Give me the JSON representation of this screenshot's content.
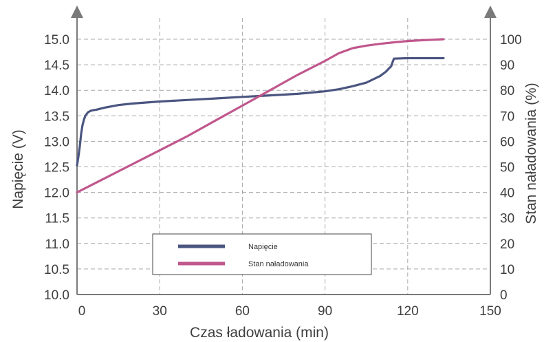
{
  "chart_data": {
    "type": "line",
    "xlabel": "Czas ładowania (min)",
    "ylabel_left": "Napięcie (V)",
    "ylabel_right": "Stan naładowania (%)",
    "xlim": [
      0,
      150
    ],
    "ylim_left": [
      10.0,
      15.0
    ],
    "ylim_right": [
      0,
      100
    ],
    "x_ticks": [
      "0",
      "30",
      "60",
      "90",
      "120",
      "150"
    ],
    "y_left_ticks": [
      "10.0",
      "10.5",
      "11.0",
      "11.5",
      "12.0",
      "12.5",
      "13.0",
      "13.5",
      "14.0",
      "14.5",
      "15.0"
    ],
    "y_right_ticks": [
      "0",
      "10",
      "20",
      "30",
      "40",
      "50",
      "60",
      "70",
      "80",
      "90",
      "100"
    ],
    "grid": true,
    "legend_position": "bottom-center",
    "series": [
      {
        "name": "Napięcie",
        "axis": "left",
        "color": "#4a5580",
        "x": [
          0,
          0.5,
          1,
          1.5,
          2,
          2.5,
          3,
          4,
          5,
          6,
          7,
          10,
          15,
          20,
          30,
          40,
          50,
          60,
          70,
          80,
          90,
          95,
          100,
          105,
          110,
          112,
          114,
          114.5,
          115,
          120,
          125,
          133
        ],
        "y": [
          12.53,
          12.7,
          12.9,
          13.15,
          13.32,
          13.42,
          13.5,
          13.57,
          13.6,
          13.61,
          13.62,
          13.66,
          13.71,
          13.74,
          13.78,
          13.81,
          13.84,
          13.87,
          13.9,
          13.93,
          13.98,
          14.02,
          14.08,
          14.15,
          14.28,
          14.36,
          14.47,
          14.55,
          14.62,
          14.63,
          14.63,
          14.63
        ]
      },
      {
        "name": "Stan naładowania",
        "axis": "right",
        "color": "#c0578d",
        "x": [
          0,
          10,
          20,
          30,
          40,
          50,
          60,
          70,
          80,
          90,
          95,
          100,
          105,
          110,
          115,
          120,
          125,
          133
        ],
        "y": [
          40,
          45.5,
          51,
          56.5,
          62,
          68,
          74,
          80,
          86,
          91.5,
          94.5,
          96.5,
          97.5,
          98.2,
          98.8,
          99.3,
          99.6,
          100
        ]
      }
    ]
  }
}
